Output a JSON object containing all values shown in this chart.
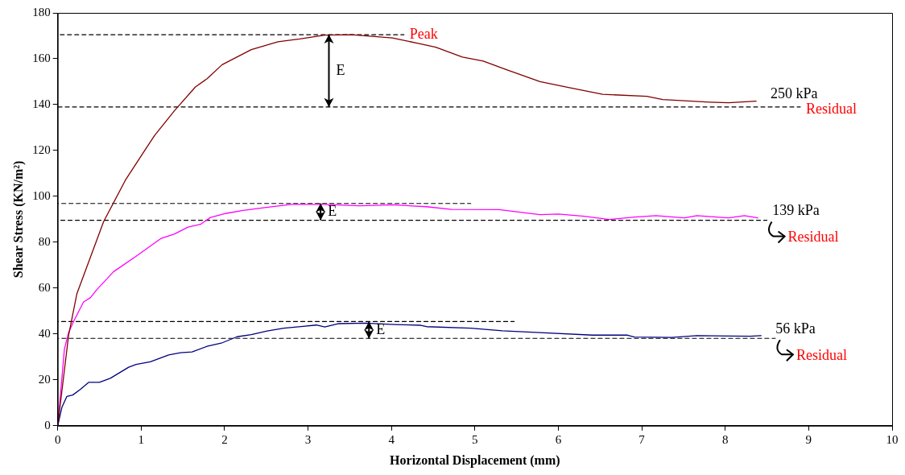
{
  "chart_data": {
    "type": "line",
    "xlabel": "Horizontal Displacement (mm)",
    "ylabel": "Shear Stress (KN/m²)",
    "xlim": [
      0,
      10
    ],
    "xticks": [
      0,
      1,
      2,
      3,
      4,
      5,
      6,
      7,
      8,
      9,
      10
    ],
    "ylim": [
      0,
      180
    ],
    "yticks": [
      0,
      20,
      40,
      60,
      80,
      100,
      120,
      140,
      160,
      180
    ],
    "grid": false,
    "legend": false,
    "marker": "none",
    "line_style": "solid",
    "series": [
      {
        "name": "250 kPa",
        "color": "#800000",
        "x": [
          0,
          0.13,
          0.23,
          0.39,
          0.55,
          0.81,
          1.03,
          1.16,
          1.4,
          1.65,
          1.79,
          1.97,
          2.32,
          2.64,
          2.9,
          3.2,
          3.52,
          4.01,
          4.32,
          4.53,
          4.85,
          5.1,
          5.36,
          5.78,
          6.12,
          6.53,
          7.06,
          7.25,
          7.81,
          8.04,
          8.37
        ],
        "values": [
          0,
          39.4,
          57.6,
          73.3,
          89,
          107,
          119.3,
          126.5,
          137.4,
          147.7,
          151.3,
          157.4,
          164,
          167.4,
          168.6,
          170.3,
          170.5,
          169.1,
          166.7,
          165,
          160.7,
          159,
          155.5,
          150,
          147.5,
          144.5,
          143.6,
          142.2,
          141.1,
          140.8,
          141.5
        ]
      },
      {
        "name": "139 kPa",
        "color": "#ff00ff",
        "x": [
          0,
          0.08,
          0.13,
          0.19,
          0.31,
          0.39,
          0.47,
          0.67,
          0.94,
          1.24,
          1.4,
          1.56,
          1.71,
          1.83,
          2.02,
          2.22,
          2.48,
          2.8,
          3.2,
          3.62,
          4.01,
          4.42,
          4.72,
          5.29,
          5.78,
          6,
          6.31,
          6.61,
          6.91,
          7.17,
          7.51,
          7.66,
          8.04,
          8.23,
          8.39
        ],
        "values": [
          0,
          33.4,
          40.6,
          45.5,
          54,
          55.8,
          59.4,
          67.2,
          73.9,
          81.7,
          83.6,
          86.6,
          87.8,
          90.8,
          92.6,
          93.9,
          95.1,
          96.5,
          96.5,
          95.9,
          96.3,
          95.5,
          94.3,
          94.2,
          92,
          92.3,
          91.3,
          89.9,
          91,
          91.6,
          90.6,
          91.6,
          90.6,
          91.6,
          90.6
        ]
      },
      {
        "name": "56 kPa",
        "color": "#000080",
        "x": [
          0,
          0.05,
          0.11,
          0.18,
          0.27,
          0.37,
          0.5,
          0.63,
          0.85,
          0.94,
          1.11,
          1.33,
          1.47,
          1.61,
          1.79,
          1.96,
          2.15,
          2.32,
          2.51,
          2.71,
          2.94,
          3.1,
          3.2,
          3.36,
          3.69,
          4.04,
          4.35,
          4.42,
          4.95,
          5.33,
          5.78,
          6.41,
          6.83,
          6.91,
          7.36,
          7.66,
          8.04,
          8.3,
          8.43
        ],
        "values": [
          0,
          8,
          12.8,
          13.4,
          15.8,
          18.9,
          18.9,
          20.7,
          25.5,
          26.7,
          27.9,
          30.9,
          31.8,
          32.2,
          34.6,
          36,
          38.8,
          39.7,
          41.3,
          42.5,
          43.3,
          43.9,
          43.1,
          44.5,
          44.7,
          44.1,
          43.8,
          43.2,
          42.5,
          41.4,
          40.6,
          39.5,
          39.5,
          38.7,
          38.5,
          39.3,
          39.1,
          39,
          39.3
        ]
      },
      {
        "color": "#000000",
        "line_style": "dashed",
        "x": [
          0,
          4.15
        ],
        "values": [
          170.5,
          170.5
        ]
      },
      {
        "color": "#000000",
        "line_style": "dashed",
        "x": [
          0,
          8.9
        ],
        "values": [
          139,
          139
        ]
      },
      {
        "color": "#000000",
        "line_style": "dashed",
        "x": [
          0,
          4.95
        ],
        "values": [
          96.9,
          96.9
        ]
      },
      {
        "color": "#000000",
        "line_style": "dashed",
        "x": [
          0,
          8.5
        ],
        "values": [
          89.6,
          89.6
        ]
      },
      {
        "color": "#000000",
        "line_style": "dashed",
        "x": [
          0,
          5.47
        ],
        "values": [
          45.4,
          45.4
        ]
      },
      {
        "color": "#000000",
        "line_style": "dashed",
        "x": [
          0,
          8.6
        ],
        "values": [
          38.1,
          38.1
        ]
      }
    ],
    "annotations": [
      {
        "text": "Peak",
        "x": 4.15,
        "y": 170.5
      },
      {
        "text": "E",
        "x": 3.25,
        "y": 170.5
      },
      {
        "text": "Residual",
        "x": 8.9,
        "y": 139
      },
      {
        "text": "E",
        "x": 3.15,
        "y": 96.9
      },
      {
        "text": "Residual",
        "x": 8.5,
        "y": 89.6
      },
      {
        "text": "E",
        "x": 3.73,
        "y": 45.4
      },
      {
        "text": "Residual",
        "x": 8.6,
        "y": 38.1
      }
    ]
  }
}
